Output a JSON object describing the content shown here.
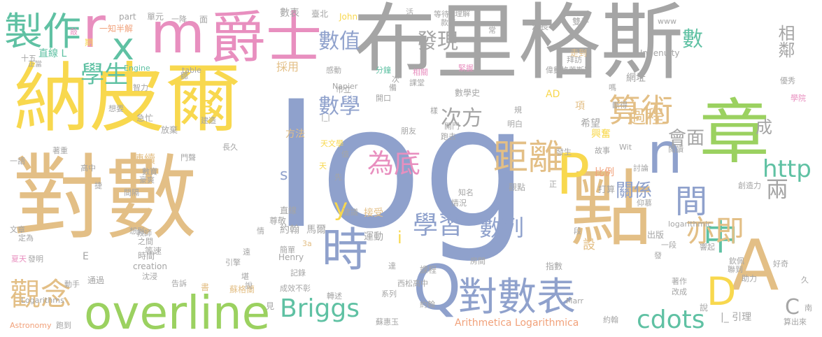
{
  "colors": {
    "gray": "#a5a5a5",
    "blue": "#8fa1cc",
    "yellow": "#f8d84e",
    "tan": "#e3bf86",
    "green": "#9bd160",
    "pink": "#e88fbf",
    "orange": "#f1a17a",
    "teal": "#5fc1a3"
  },
  "words": [
    {
      "text": "log",
      "color": "blue"
    },
    {
      "text": "布里格斯",
      "color": "gray"
    },
    {
      "text": "對數",
      "color": "tan"
    },
    {
      "text": "納皮爾",
      "color": "yellow"
    },
    {
      "text": "點",
      "color": "tan"
    },
    {
      "text": "章",
      "color": "green"
    },
    {
      "text": "爵士",
      "color": "pink"
    },
    {
      "text": "m",
      "color": "pink"
    },
    {
      "text": "r",
      "color": "pink"
    },
    {
      "text": "x",
      "color": "teal"
    },
    {
      "text": "製作",
      "color": "teal"
    },
    {
      "text": "overline",
      "color": "green"
    },
    {
      "text": "對數表",
      "color": "blue"
    },
    {
      "text": "Q",
      "color": "blue"
    },
    {
      "text": "時",
      "color": "blue"
    },
    {
      "text": "A",
      "color": "tan"
    },
    {
      "text": "P",
      "color": "yellow"
    },
    {
      "text": "n",
      "color": "blue"
    },
    {
      "text": "中",
      "color": "teal"
    },
    {
      "text": "D",
      "color": "yellow"
    },
    {
      "text": "算術",
      "color": "tan"
    },
    {
      "text": "距離",
      "color": "tan"
    },
    {
      "text": "為底",
      "color": "pink"
    },
    {
      "text": "學習",
      "color": "blue"
    },
    {
      "text": "數列",
      "color": "blue"
    },
    {
      "text": "觀念",
      "color": "tan"
    },
    {
      "text": "Briggs",
      "color": "teal"
    },
    {
      "text": "cdots",
      "color": "teal"
    },
    {
      "text": "間",
      "color": "blue"
    },
    {
      "text": "亦即",
      "color": "tan"
    },
    {
      "text": "關係",
      "color": "blue"
    },
    {
      "text": "數學",
      "color": "blue"
    },
    {
      "text": "數值",
      "color": "blue"
    },
    {
      "text": "發現",
      "color": "gray"
    },
    {
      "text": "次方",
      "color": "gray"
    },
    {
      "text": "學生",
      "color": "teal"
    },
    {
      "text": "過程",
      "color": "tan"
    },
    {
      "text": "會面",
      "color": "gray"
    },
    {
      "text": "相鄰",
      "color": "gray"
    },
    {
      "text": "成",
      "color": "gray"
    },
    {
      "text": "http",
      "color": "teal"
    },
    {
      "text": "兩",
      "color": "gray"
    },
    {
      "text": "數",
      "color": "teal"
    },
    {
      "text": "B",
      "color": "yellow"
    },
    {
      "text": "y",
      "color": "yellow"
    },
    {
      "text": "s",
      "color": "blue"
    },
    {
      "text": "i",
      "color": "yellow"
    },
    {
      "text": "C",
      "color": "gray"
    },
    {
      "text": "設",
      "color": "tan"
    },
    {
      "text": "直線 L",
      "color": "teal"
    },
    {
      "text": "採用",
      "color": "tan"
    },
    {
      "text": "數表",
      "color": "gray"
    },
    {
      "text": "單元",
      "color": "gray"
    },
    {
      "text": "一知半解",
      "color": "orange"
    },
    {
      "text": "十五",
      "color": "gray"
    },
    {
      "text": "正當",
      "color": "gray"
    },
    {
      "text": "智力",
      "color": "gray"
    },
    {
      "text": "Engine",
      "color": "teal"
    },
    {
      "text": "table",
      "color": "gray"
    },
    {
      "text": "臺北",
      "color": "gray"
    },
    {
      "text": "John",
      "color": "yellow"
    },
    {
      "text": "part",
      "color": "gray"
    },
    {
      "text": "Napier",
      "color": "gray"
    },
    {
      "text": "數學史",
      "color": "gray"
    },
    {
      "text": "走到",
      "color": "tan"
    },
    {
      "text": "AD",
      "color": "yellow"
    },
    {
      "text": "網址",
      "color": "gray"
    },
    {
      "text": "Ingenuity",
      "color": "gray"
    },
    {
      "text": "偉數格萊斯罕",
      "color": "gray"
    },
    {
      "text": "www",
      "color": "gray"
    },
    {
      "text": "漫長",
      "color": "gray"
    },
    {
      "text": "雙手",
      "color": "gray"
    },
    {
      "text": "拜訪",
      "color": "gray"
    },
    {
      "text": "學院",
      "color": "pink"
    },
    {
      "text": "優秀",
      "color": "gray"
    },
    {
      "text": "項",
      "color": "tan"
    },
    {
      "text": "希望",
      "color": "gray"
    },
    {
      "text": "興奮",
      "color": "yellow"
    },
    {
      "text": "比例",
      "color": "orange"
    },
    {
      "text": "打算",
      "color": "gray"
    },
    {
      "text": "討論",
      "color": "gray"
    },
    {
      "text": "logarithmic",
      "color": "gray"
    },
    {
      "text": "創造力",
      "color": "gray"
    },
    {
      "text": "出版",
      "color": "gray"
    },
    {
      "text": "一段",
      "color": "gray"
    },
    {
      "text": "響起",
      "color": "gray"
    },
    {
      "text": "故事",
      "color": "gray"
    },
    {
      "text": "Wit",
      "color": "gray"
    },
    {
      "text": "連續",
      "color": "tan"
    },
    {
      "text": "間隔",
      "color": "gray"
    },
    {
      "text": "尊敬",
      "color": "gray"
    },
    {
      "text": "直線",
      "color": "gray"
    },
    {
      "text": "接受",
      "color": "tan"
    },
    {
      "text": "約翰",
      "color": "gray"
    },
    {
      "text": "馬爾",
      "color": "gray"
    },
    {
      "text": "運動",
      "color": "gray"
    },
    {
      "text": "等速",
      "color": "gray"
    },
    {
      "text": "時間",
      "color": "gray"
    },
    {
      "text": "Henry",
      "color": "gray"
    },
    {
      "text": "creation",
      "color": "gray"
    },
    {
      "text": "指數",
      "color": "gray"
    },
    {
      "text": "課程",
      "color": "gray"
    },
    {
      "text": "房間",
      "color": "gray"
    },
    {
      "text": "西松高中",
      "color": "gray"
    },
    {
      "text": "蘇格蘭",
      "color": "tan"
    },
    {
      "text": "成效不彰",
      "color": "gray"
    },
    {
      "text": "記錄",
      "color": "gray"
    },
    {
      "text": "通過",
      "color": "gray"
    },
    {
      "text": "告訴",
      "color": "gray"
    },
    {
      "text": "沈浸",
      "color": "gray"
    },
    {
      "text": "Logarithms",
      "color": "gray"
    },
    {
      "text": "Astronomy",
      "color": "orange"
    },
    {
      "text": "跑到",
      "color": "gray"
    },
    {
      "text": "Arithmetica Logarithmica",
      "color": "orange"
    },
    {
      "text": "蘇惠玉",
      "color": "gray"
    },
    {
      "text": "約翰",
      "color": "gray"
    },
    {
      "text": "|_ 引理",
      "color": "gray"
    },
    {
      "text": "算出來",
      "color": "gray"
    },
    {
      "text": "系列",
      "color": "gray"
    },
    {
      "text": "轉述",
      "color": "gray"
    },
    {
      "text": "夏天",
      "color": "pink"
    },
    {
      "text": "發明",
      "color": "gray"
    },
    {
      "text": "文章",
      "color": "gray"
    },
    {
      "text": "定為",
      "color": "gray"
    },
    {
      "text": "想到",
      "color": "gray"
    },
    {
      "text": "教師",
      "color": "gray"
    },
    {
      "text": "之間",
      "color": "gray"
    },
    {
      "text": "方法",
      "color": "tan"
    },
    {
      "text": "天文學",
      "color": "yellow"
    },
    {
      "text": "朋友",
      "color": "gray"
    },
    {
      "text": "明白",
      "color": "gray"
    },
    {
      "text": "跑去",
      "color": "gray"
    },
    {
      "text": "觀點",
      "color": "gray"
    },
    {
      "text": "知名",
      "color": "gray"
    },
    {
      "text": "情況",
      "color": "gray"
    },
    {
      "text": "建議",
      "color": "gray"
    },
    {
      "text": "放棄",
      "color": "gray"
    },
    {
      "text": "急忙",
      "color": "gray"
    },
    {
      "text": "想要",
      "color": "gray"
    },
    {
      "text": "著重",
      "color": "gray"
    },
    {
      "text": "高中",
      "color": "gray"
    },
    {
      "text": "門聲",
      "color": "gray"
    },
    {
      "text": "長久",
      "color": "gray"
    },
    {
      "text": "豪爽",
      "color": "gray"
    },
    {
      "text": "數寶",
      "color": "gray"
    },
    {
      "text": "一語",
      "color": "gray"
    },
    {
      "text": "市立",
      "color": "gray"
    },
    {
      "text": "開口",
      "color": "gray"
    },
    {
      "text": "課堂",
      "color": "gray"
    },
    {
      "text": "分鐘",
      "color": "teal"
    },
    {
      "text": "相關",
      "color": "pink"
    },
    {
      "text": "緊握",
      "color": "pink"
    },
    {
      "text": "感動",
      "color": "gray"
    },
    {
      "text": "面",
      "color": "gray"
    },
    {
      "text": "一降",
      "color": "gray"
    },
    {
      "text": "活",
      "color": "gray"
    },
    {
      "text": "等待",
      "color": "gray"
    },
    {
      "text": "理解",
      "color": "gray"
    },
    {
      "text": "常",
      "color": "gray"
    },
    {
      "text": "款待",
      "color": "gray"
    },
    {
      "text": "期",
      "color": "yellow"
    },
    {
      "text": "敲",
      "color": "pink"
    },
    {
      "text": "3a",
      "color": "tan"
    },
    {
      "text": "E",
      "color": "gray"
    },
    {
      "text": "說",
      "color": "gray"
    },
    {
      "text": "書",
      "color": "tan"
    },
    {
      "text": "見",
      "color": "gray"
    },
    {
      "text": "著作",
      "color": "gray"
    },
    {
      "text": "改成",
      "color": "gray"
    },
    {
      "text": "助力",
      "color": "gray"
    },
    {
      "text": "好奇",
      "color": "gray"
    },
    {
      "text": "久",
      "color": "gray"
    },
    {
      "text": "約翰",
      "color": "gray"
    },
    {
      "text": "Marr",
      "color": "gray"
    },
    {
      "text": "欽佩",
      "color": "gray"
    },
    {
      "text": "聯到",
      "color": "gray"
    },
    {
      "text": "發生",
      "color": "gray"
    },
    {
      "text": "|_|",
      "color": "gray"
    },
    {
      "text": "天",
      "color": "yellow"
    },
    {
      "text": "先",
      "color": "gray"
    },
    {
      "text": "值",
      "color": "gray"
    },
    {
      "text": "情",
      "color": "gray"
    },
    {
      "text": "遠",
      "color": "gray"
    },
    {
      "text": "引擎",
      "color": "gray"
    },
    {
      "text": "簡單",
      "color": "gray"
    },
    {
      "text": "達",
      "color": "gray"
    },
    {
      "text": "段",
      "color": "gray"
    },
    {
      "text": "仰慕",
      "color": "gray"
    },
    {
      "text": "正",
      "color": "gray"
    },
    {
      "text": "閱讀",
      "color": "gray"
    },
    {
      "text": "備",
      "color": "gray"
    },
    {
      "text": "開門",
      "color": "gray"
    },
    {
      "text": "樣",
      "color": "gray"
    },
    {
      "text": "次",
      "color": "gray"
    },
    {
      "text": "發",
      "color": "gray"
    },
    {
      "text": "南",
      "color": "gray"
    },
    {
      "text": "動手",
      "color": "gray"
    },
    {
      "text": "捷",
      "color": "gray"
    },
    {
      "text": "規",
      "color": "gray"
    },
    {
      "text": "說",
      "color": "gray"
    },
    {
      "text": "堪",
      "color": "gray"
    },
    {
      "text": "斷得",
      "color": "gray"
    },
    {
      "text": "嗎",
      "color": "gray"
    },
    {
      "text": "聽",
      "color": "gray"
    },
    {
      "text": "建造",
      "color": "gray"
    }
  ]
}
